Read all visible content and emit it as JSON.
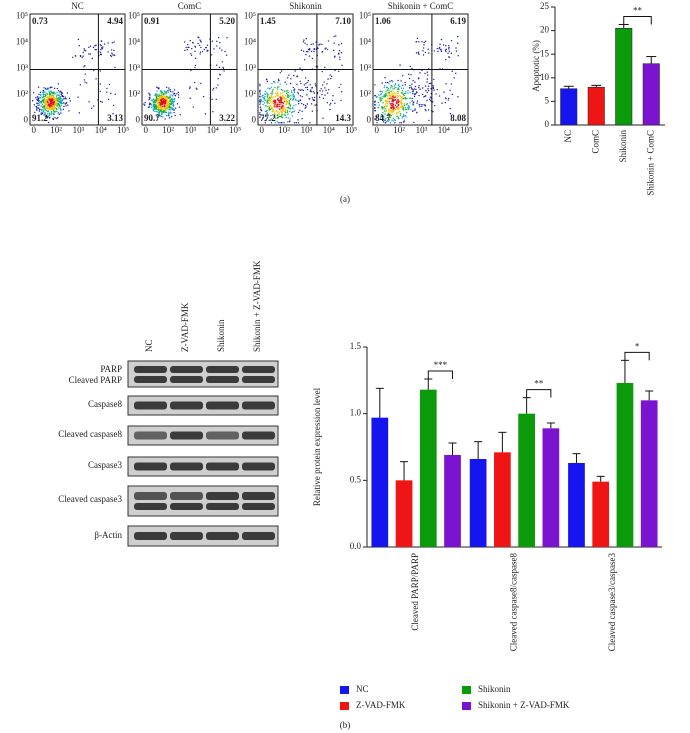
{
  "flow_plots": [
    {
      "title": "NC",
      "quadrants": [
        "0.73",
        "4.94",
        "91.2",
        "3.13"
      ]
    },
    {
      "title": "ComC",
      "quadrants": [
        "0.91",
        "5.20",
        "90.7",
        "3.22"
      ]
    },
    {
      "title": "Shikonin",
      "quadrants": [
        "1.45",
        "7.10",
        "77.2",
        "14.3"
      ]
    },
    {
      "title": "Shikonin + ComC",
      "quadrants": [
        "1.06",
        "6.19",
        "84.7",
        "8.08"
      ]
    }
  ],
  "flow_axis_ticks": [
    "0",
    "10²",
    "10³",
    "10⁴",
    "10⁵"
  ],
  "western_blot": {
    "lanes": [
      "NC",
      "Z-VAD-FMK",
      "Shikonin",
      "Shikonin + Z-VAD-FMK"
    ],
    "rows": [
      "PARP",
      "Cleaved PARP",
      "Caspase8",
      "Cleaved caspase8",
      "Caspase3",
      "Cleaved caspase3",
      "β-Actin"
    ]
  },
  "panel_labels": [
    "(a)",
    "(b)"
  ],
  "chart_data": [
    {
      "type": "bar",
      "ylabel": "Apoptotic (%)",
      "categories": [
        "NC",
        "ComC",
        "Shikonin",
        "Shikonin + ComC"
      ],
      "values": [
        7.7,
        8.0,
        20.5,
        13.0
      ],
      "errors": [
        0.5,
        0.4,
        0.8,
        1.5
      ],
      "colors": [
        "#1515f0",
        "#f01515",
        "#0a9a0a",
        "#7a14d0"
      ],
      "ylim": [
        0,
        25
      ],
      "yticks": [
        0,
        5,
        10,
        15,
        20,
        25
      ],
      "annotations": [
        "**"
      ]
    },
    {
      "type": "grouped_bar",
      "ylabel": "Relative protein expression level",
      "categories": [
        "Cleaved PARP/PARP",
        "Cleaved caspase8/caspase8",
        "Cleaved caspase3/caspase3"
      ],
      "series": [
        {
          "name": "NC",
          "color": "#1515f0",
          "values": [
            0.97,
            0.66,
            0.63
          ],
          "errors": [
            0.22,
            0.13,
            0.07
          ]
        },
        {
          "name": "Z-VAD-FMK",
          "color": "#f01515",
          "values": [
            0.5,
            0.71,
            0.49
          ],
          "errors": [
            0.14,
            0.15,
            0.04
          ]
        },
        {
          "name": "Shikonin",
          "color": "#0a9a0a",
          "values": [
            1.18,
            1.0,
            1.23
          ],
          "errors": [
            0.08,
            0.12,
            0.17
          ]
        },
        {
          "name": "Shikonin + Z-VAD-FMK",
          "color": "#7a14d0",
          "values": [
            0.69,
            0.89,
            1.1
          ],
          "errors": [
            0.09,
            0.04,
            0.07
          ]
        }
      ],
      "ylim": [
        0,
        1.5
      ],
      "yticks": [
        {
          "value": 0,
          "label": "0.0"
        },
        0.5,
        {
          "value": 1,
          "label": "1.0"
        },
        1.5
      ],
      "annotations": [
        "***",
        "**",
        "*"
      ]
    }
  ]
}
